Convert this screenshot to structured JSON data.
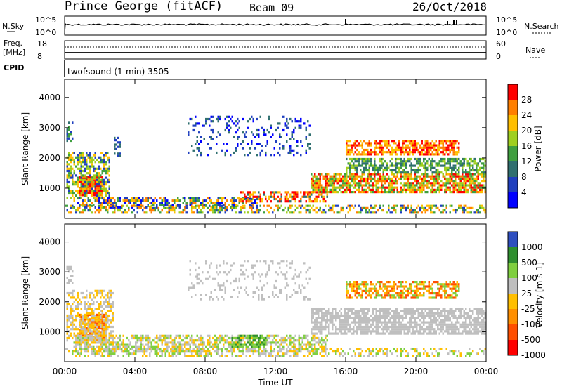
{
  "header": {
    "station": "Prince George (fitACF)",
    "beam": "Beam 09",
    "date": "26/Oct/2018"
  },
  "top_panels": {
    "nsky_label": "N.Sky",
    "nsky_ticks": [
      "10^5",
      "10^0"
    ],
    "nsearch_label": "N.Search",
    "nsearch_ticks": [
      "10^5",
      "10^0"
    ],
    "freq_label": "Freq.",
    "freq_unit": "[MHz]",
    "freq_ticks": [
      "18",
      "8"
    ],
    "nave_label": "Nave",
    "nave_ticks": [
      "60",
      "0"
    ],
    "cpid_label": "CPID",
    "cpid_text": "twofsound (1-min) 3505"
  },
  "colors": {
    "power_scale": [
      "#0000ff",
      "#1f3fbf",
      "#2f6f6f",
      "#3f9f3f",
      "#9fcf1f",
      "#ffbf00",
      "#ff7f00",
      "#ff0000"
    ],
    "velocity_scale": [
      "#ff0000",
      "#ff4f00",
      "#ff8f00",
      "#ffbf00",
      "#bfbfbf",
      "#7fcf3f",
      "#2f8f2f",
      "#2f4fbf"
    ]
  },
  "chart_data": [
    {
      "type": "heatmap",
      "name": "power",
      "ylabel": "Slant Range [km]",
      "yticks": [
        "1000",
        "2000",
        "3000",
        "4000"
      ],
      "xlabel": "",
      "colorbar_label": "Power [dB]",
      "colorbar_ticks": [
        "4",
        "8",
        "12",
        "16",
        "20",
        "24",
        "28"
      ]
    },
    {
      "type": "heatmap",
      "name": "velocity",
      "ylabel": "Slant Range [km]",
      "yticks": [
        "1000",
        "2000",
        "3000",
        "4000"
      ],
      "xlabel": "Time UT",
      "xticks": [
        "00:00",
        "04:00",
        "08:00",
        "12:00",
        "16:00",
        "20:00",
        "00:00"
      ],
      "colorbar_label": "Velocity [m s-1]",
      "colorbar_ticks": [
        "1000",
        "500",
        "100",
        "25",
        "-25",
        "-100",
        "-500",
        "-1000"
      ]
    }
  ]
}
